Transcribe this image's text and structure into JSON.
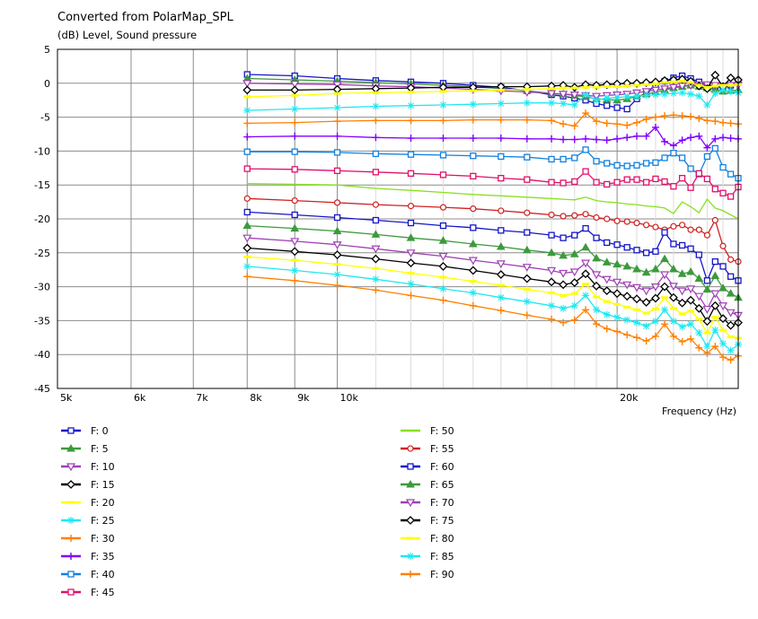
{
  "chart_data": {
    "type": "line",
    "title": "Converted from PolarMap_SPL",
    "ylabel": "(dB)  Level, Sound pressure",
    "xlabel": "Frequency  (Hz)",
    "xscale": "log",
    "xlim": [
      5000,
      27000
    ],
    "ylim": [
      -45,
      5
    ],
    "grid": true,
    "x_ticks": [
      {
        "value": 5000,
        "label": "5k"
      },
      {
        "value": 6000,
        "label": "6k"
      },
      {
        "value": 7000,
        "label": "7k"
      },
      {
        "value": 8000,
        "label": "8k"
      },
      {
        "value": 9000,
        "label": "9k"
      },
      {
        "value": 10000,
        "label": "10k"
      },
      {
        "value": 20000,
        "label": "20k"
      }
    ],
    "y_ticks": [
      5,
      0,
      -5,
      -10,
      -15,
      -20,
      -25,
      -30,
      -35,
      -40,
      -45
    ],
    "x": [
      8000,
      9000,
      10000,
      11000,
      12000,
      13000,
      14000,
      15000,
      16000,
      17000,
      17500,
      18000,
      18500,
      19000,
      19500,
      20000,
      20500,
      21000,
      21500,
      22000,
      22500,
      23000,
      23500,
      24000,
      24500,
      25000,
      25500,
      26000,
      26500,
      27000
    ],
    "legend_position": "bottom",
    "series": [
      {
        "name": "F: 0",
        "color": "#1515c8",
        "marker": "square",
        "values": [
          1.3,
          1.1,
          0.7,
          0.4,
          0.2,
          0.0,
          -0.3,
          -0.6,
          -1.1,
          -1.7,
          -1.9,
          -2.2,
          -2.5,
          -3.0,
          -3.3,
          -3.6,
          -3.8,
          -2.3,
          -1.3,
          -0.4,
          0.3,
          0.8,
          1.1,
          0.7,
          0.2,
          -0.3,
          -0.5,
          -0.6,
          -0.3,
          0.2
        ]
      },
      {
        "name": "F: 5",
        "color": "#3c9a3c",
        "marker": "triangle-up",
        "values": [
          0.7,
          0.5,
          0.3,
          0.1,
          -0.1,
          -0.3,
          -0.5,
          -0.8,
          -1.1,
          -1.5,
          -1.6,
          -1.8,
          -2.0,
          -2.3,
          -2.4,
          -2.5,
          -2.3,
          -1.9,
          -1.6,
          -1.3,
          -1.0,
          -0.7,
          -0.5,
          -0.3,
          -0.5,
          -0.7,
          -0.9,
          -1.2,
          -1.1,
          -1.0
        ]
      },
      {
        "name": "F: 10",
        "color": "#a040b4",
        "marker": "triangle-down",
        "values": [
          0.0,
          -0.1,
          -0.2,
          -0.4,
          -0.5,
          -0.7,
          -0.9,
          -1.1,
          -1.3,
          -1.5,
          -1.6,
          -1.7,
          -1.8,
          -1.9,
          -1.8,
          -1.7,
          -1.6,
          -1.4,
          -1.2,
          -1.0,
          -0.8,
          -0.6,
          -0.4,
          -0.3,
          -0.2,
          -0.2,
          -0.3,
          -0.4,
          -0.3,
          -0.3
        ]
      },
      {
        "name": "F: 15",
        "color": "#000000",
        "marker": "diamond",
        "values": [
          -1.0,
          -1.0,
          -0.9,
          -0.8,
          -0.7,
          -0.6,
          -0.6,
          -0.5,
          -0.5,
          -0.4,
          -0.3,
          -0.6,
          -0.2,
          -0.3,
          -0.2,
          -0.1,
          0.0,
          0.0,
          0.1,
          0.2,
          0.4,
          0.5,
          0.6,
          0.3,
          -0.4,
          -0.8,
          1.2,
          -0.5,
          0.8,
          0.5
        ]
      },
      {
        "name": "F: 20",
        "color": "#ffff00",
        "marker": "dash",
        "values": [
          -2.0,
          -1.8,
          -1.5,
          -1.4,
          -1.3,
          -1.2,
          -1.1,
          -1.0,
          -0.9,
          -0.8,
          -0.7,
          -0.7,
          -0.6,
          -0.6,
          -0.5,
          -0.5,
          -0.4,
          -0.3,
          -0.2,
          -0.1,
          0.1,
          0.2,
          0.3,
          0.1,
          -0.3,
          -0.6,
          -0.4,
          -0.3,
          -0.3,
          -0.2
        ]
      },
      {
        "name": "F: 25",
        "color": "#20e8f0",
        "marker": "star",
        "values": [
          -4.0,
          -3.8,
          -3.6,
          -3.4,
          -3.3,
          -3.2,
          -3.1,
          -3.0,
          -2.9,
          -2.9,
          -3.0,
          -3.2,
          -1.7,
          -2.5,
          -2.2,
          -2.1,
          -2.0,
          -1.9,
          -1.8,
          -1.7,
          -1.6,
          -1.5,
          -1.4,
          -1.6,
          -1.9,
          -3.2,
          -1.5,
          -1.0,
          -1.2,
          -1.4
        ]
      },
      {
        "name": "F: 30",
        "color": "#ff8000",
        "marker": "plus",
        "values": [
          -5.9,
          -5.8,
          -5.6,
          -5.5,
          -5.5,
          -5.5,
          -5.4,
          -5.4,
          -5.4,
          -5.5,
          -6.0,
          -6.3,
          -4.4,
          -5.6,
          -5.9,
          -6.0,
          -6.2,
          -5.8,
          -5.3,
          -5.0,
          -4.8,
          -4.7,
          -4.8,
          -4.9,
          -5.2,
          -5.5,
          -5.6,
          -5.8,
          -5.9,
          -6.0
        ]
      },
      {
        "name": "F: 35",
        "color": "#8000ff",
        "marker": "plus",
        "values": [
          -7.9,
          -7.8,
          -7.8,
          -8.0,
          -8.1,
          -8.1,
          -8.1,
          -8.1,
          -8.2,
          -8.2,
          -8.3,
          -8.3,
          -8.2,
          -8.3,
          -8.4,
          -8.2,
          -8.0,
          -7.8,
          -7.8,
          -6.5,
          -8.6,
          -9.2,
          -8.4,
          -8.0,
          -7.8,
          -9.5,
          -8.2,
          -8.0,
          -8.1,
          -8.2
        ]
      },
      {
        "name": "F: 40",
        "color": "#1080e0",
        "marker": "square",
        "values": [
          -10.1,
          -10.1,
          -10.2,
          -10.4,
          -10.5,
          -10.6,
          -10.7,
          -10.8,
          -10.9,
          -11.2,
          -11.2,
          -11.0,
          -9.8,
          -11.5,
          -11.8,
          -12.1,
          -12.2,
          -12.1,
          -11.8,
          -11.7,
          -11.0,
          -10.3,
          -11.0,
          -12.6,
          -13.4,
          -10.8,
          -9.6,
          -12.4,
          -13.4,
          -14.0
        ]
      },
      {
        "name": "F: 45",
        "color": "#e0106a",
        "marker": "square",
        "values": [
          -12.6,
          -12.7,
          -12.9,
          -13.1,
          -13.3,
          -13.5,
          -13.7,
          -14.0,
          -14.2,
          -14.6,
          -14.7,
          -14.5,
          -13.0,
          -14.6,
          -14.9,
          -14.6,
          -14.2,
          -14.2,
          -14.6,
          -14.1,
          -14.5,
          -15.2,
          -14.0,
          -15.4,
          -13.3,
          -14.1,
          -15.6,
          -16.2,
          -16.7,
          -15.3
        ]
      },
      {
        "name": "F: 50",
        "color": "#88e020",
        "marker": "none",
        "values": [
          -14.8,
          -14.9,
          -15.0,
          -15.5,
          -15.8,
          -16.1,
          -16.4,
          -16.6,
          -16.8,
          -17.0,
          -17.1,
          -17.2,
          -16.8,
          -17.3,
          -17.5,
          -17.6,
          -17.8,
          -17.9,
          -18.1,
          -18.2,
          -18.4,
          -19.2,
          -17.5,
          -18.2,
          -19.1,
          -17.1,
          -18.4,
          -18.8,
          -19.4,
          -20.0
        ]
      },
      {
        "name": "F: 55",
        "color": "#d02020",
        "marker": "circle",
        "values": [
          -17.0,
          -17.3,
          -17.6,
          -17.9,
          -18.1,
          -18.3,
          -18.5,
          -18.8,
          -19.1,
          -19.4,
          -19.6,
          -19.5,
          -19.3,
          -19.8,
          -20.0,
          -20.3,
          -20.4,
          -20.6,
          -20.9,
          -21.2,
          -21.6,
          -21.1,
          -20.9,
          -21.6,
          -21.6,
          -22.4,
          -20.2,
          -24.0,
          -26.0,
          -26.3
        ]
      },
      {
        "name": "F: 60",
        "color": "#1515c8",
        "marker": "square",
        "values": [
          -19.0,
          -19.4,
          -19.8,
          -20.2,
          -20.6,
          -21.0,
          -21.3,
          -21.7,
          -22.0,
          -22.4,
          -22.8,
          -22.4,
          -21.4,
          -22.8,
          -23.5,
          -23.8,
          -24.2,
          -24.6,
          -25.0,
          -24.8,
          -22.0,
          -23.7,
          -23.9,
          -24.4,
          -25.3,
          -29.1,
          -26.3,
          -27.0,
          -28.5,
          -29.1
        ]
      },
      {
        "name": "F: 65",
        "color": "#3c9a3c",
        "marker": "triangle-up",
        "values": [
          -21.0,
          -21.4,
          -21.8,
          -22.3,
          -22.8,
          -23.2,
          -23.7,
          -24.1,
          -24.6,
          -25.0,
          -25.4,
          -25.2,
          -24.2,
          -25.8,
          -26.4,
          -26.7,
          -27.0,
          -27.4,
          -27.9,
          -27.4,
          -25.9,
          -27.4,
          -28.1,
          -27.8,
          -28.8,
          -30.4,
          -28.4,
          -30.2,
          -31.0,
          -31.6
        ]
      },
      {
        "name": "F: 70",
        "color": "#a040b4",
        "marker": "triangle-down",
        "values": [
          -22.8,
          -23.3,
          -23.8,
          -24.4,
          -25.0,
          -25.5,
          -26.1,
          -26.6,
          -27.1,
          -27.6,
          -28.0,
          -27.8,
          -26.5,
          -28.2,
          -28.9,
          -29.3,
          -29.7,
          -30.1,
          -30.6,
          -30.0,
          -28.2,
          -29.9,
          -30.6,
          -30.3,
          -31.4,
          -33.3,
          -31.0,
          -32.8,
          -33.8,
          -34.2
        ]
      },
      {
        "name": "F: 75",
        "color": "#000000",
        "marker": "diamond",
        "values": [
          -24.3,
          -24.8,
          -25.3,
          -25.9,
          -26.5,
          -27.0,
          -27.6,
          -28.2,
          -28.8,
          -29.3,
          -29.7,
          -29.4,
          -28.1,
          -29.9,
          -30.6,
          -31.0,
          -31.4,
          -31.8,
          -32.3,
          -31.7,
          -30.0,
          -31.6,
          -32.4,
          -32.0,
          -33.2,
          -35.1,
          -32.8,
          -34.7,
          -35.7,
          -35.3
        ]
      },
      {
        "name": "F: 80",
        "color": "#ffff00",
        "marker": "dash",
        "values": [
          -25.6,
          -26.1,
          -26.7,
          -27.3,
          -28.0,
          -28.6,
          -29.2,
          -29.8,
          -30.4,
          -30.9,
          -31.3,
          -31.0,
          -29.6,
          -31.5,
          -32.2,
          -32.6,
          -33.0,
          -33.4,
          -33.9,
          -33.3,
          -31.6,
          -33.2,
          -34.0,
          -33.6,
          -34.8,
          -36.8,
          -34.5,
          -36.4,
          -37.4,
          -37.6
        ]
      },
      {
        "name": "F: 85",
        "color": "#20e8f0",
        "marker": "star",
        "values": [
          -27.0,
          -27.6,
          -28.2,
          -28.9,
          -29.6,
          -30.3,
          -30.9,
          -31.6,
          -32.2,
          -32.8,
          -33.2,
          -32.8,
          -31.3,
          -33.4,
          -34.1,
          -34.5,
          -34.9,
          -35.3,
          -35.8,
          -35.1,
          -33.4,
          -35.1,
          -35.9,
          -35.5,
          -36.8,
          -38.8,
          -36.4,
          -38.4,
          -39.4,
          -38.5
        ]
      },
      {
        "name": "F: 90",
        "color": "#ff8000",
        "marker": "plus",
        "values": [
          -28.5,
          -29.1,
          -29.8,
          -30.5,
          -31.3,
          -32.0,
          -32.8,
          -33.5,
          -34.2,
          -34.8,
          -35.3,
          -34.9,
          -33.4,
          -35.5,
          -36.2,
          -36.6,
          -37.1,
          -37.5,
          -38.0,
          -37.3,
          -35.5,
          -37.3,
          -38.1,
          -37.7,
          -39.0,
          -39.8,
          -38.8,
          -40.4,
          -40.8,
          -40.2
        ]
      }
    ]
  }
}
